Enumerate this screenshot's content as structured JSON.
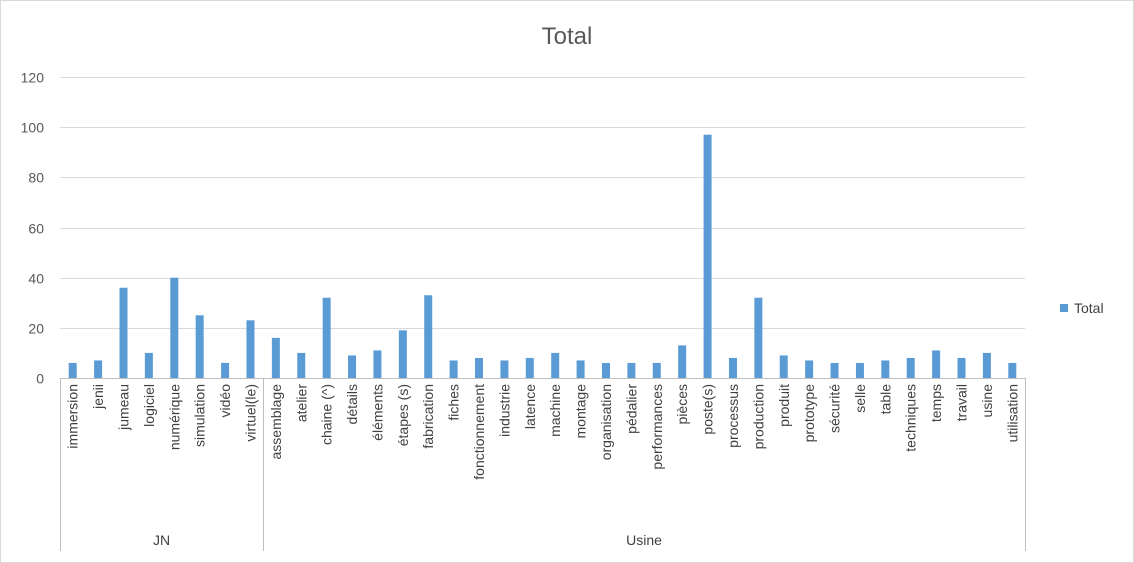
{
  "chart_data": {
    "type": "bar",
    "title": "Total",
    "ylim": [
      0,
      120
    ],
    "yticks": [
      0,
      20,
      40,
      60,
      80,
      100,
      120
    ],
    "grid": true,
    "legend_position": "right",
    "color": "#5b9bd5",
    "groups": [
      {
        "name": "JN",
        "categories": [
          "immersion",
          "jenii",
          "jumeau",
          "logiciel",
          "numérique",
          "simulation",
          "vidéo",
          "virtuel(le)"
        ]
      },
      {
        "name": "Usine",
        "categories": [
          "assemblage",
          "atelier",
          "chaine (^)",
          "détails",
          "éléments",
          "étapes (s)",
          "fabrication",
          "fiches",
          "fonctionnement",
          "industrie",
          "latence",
          "machine",
          "montage",
          "organisation",
          "pédalier",
          "performances",
          "pièces",
          "poste(s)",
          "processus",
          "production",
          "produit",
          "prototype",
          "sécurité",
          "selle",
          "table",
          "techniques",
          "temps",
          "travail",
          "usine",
          "utilisation"
        ]
      }
    ],
    "categories": [
      "immersion",
      "jenii",
      "jumeau",
      "logiciel",
      "numérique",
      "simulation",
      "vidéo",
      "virtuel(le)",
      "assemblage",
      "atelier",
      "chaine (^)",
      "détails",
      "éléments",
      "étapes (s)",
      "fabrication",
      "fiches",
      "fonctionnement",
      "industrie",
      "latence",
      "machine",
      "montage",
      "organisation",
      "pédalier",
      "performances",
      "pièces",
      "poste(s)",
      "processus",
      "production",
      "produit",
      "prototype",
      "sécurité",
      "selle",
      "table",
      "techniques",
      "temps",
      "travail",
      "usine",
      "utilisation"
    ],
    "series": [
      {
        "name": "Total",
        "values": [
          6,
          7,
          36,
          10,
          40,
          25,
          6,
          23,
          16,
          10,
          32,
          9,
          11,
          19,
          33,
          7,
          8,
          7,
          8,
          10,
          7,
          6,
          6,
          6,
          13,
          97,
          8,
          32,
          9,
          7,
          6,
          6,
          7,
          8,
          11,
          8,
          10,
          6
        ]
      }
    ]
  }
}
